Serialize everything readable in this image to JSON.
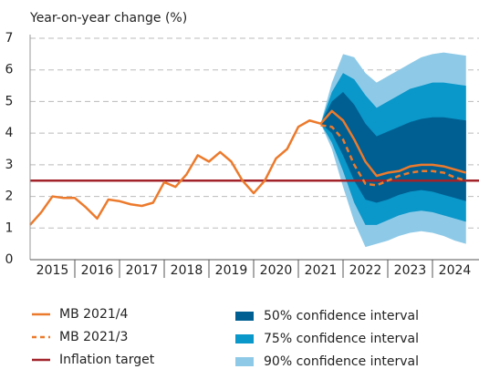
{
  "chart_data": {
    "type": "fan",
    "y_label": "Year-on-year change (%)",
    "x": [
      2015,
      2015.25,
      2015.5,
      2015.75,
      2016,
      2016.25,
      2016.5,
      2016.75,
      2017,
      2017.25,
      2017.5,
      2017.75,
      2018,
      2018.25,
      2018.5,
      2018.75,
      2019,
      2019.25,
      2019.5,
      2019.75,
      2020,
      2020.25,
      2020.5,
      2020.75,
      2021,
      2021.25,
      2021.5,
      2021.75,
      2022,
      2022.25,
      2022.5,
      2022.75,
      2023,
      2023.25,
      2023.5,
      2023.75,
      2024,
      2024.25,
      2024.5,
      2024.75
    ],
    "xlim": [
      2015,
      2025
    ],
    "xticks": [
      {
        "value": 2015.5,
        "label": "2015"
      },
      {
        "value": 2016.5,
        "label": "2016"
      },
      {
        "value": 2017.5,
        "label": "2017"
      },
      {
        "value": 2018.5,
        "label": "2018"
      },
      {
        "value": 2019.5,
        "label": "2019"
      },
      {
        "value": 2020.5,
        "label": "2020"
      },
      {
        "value": 2021.5,
        "label": "2021"
      },
      {
        "value": 2022.5,
        "label": "2022"
      },
      {
        "value": 2023.5,
        "label": "2023"
      },
      {
        "value": 2024.5,
        "label": "2024"
      }
    ],
    "ylim": [
      0,
      7
    ],
    "yticks": [
      0,
      1,
      2,
      3,
      4,
      5,
      6,
      7
    ],
    "grid": true,
    "bands": [
      {
        "name": "90% confidence interval",
        "color": "#8ecae8",
        "upper": [
          null,
          null,
          null,
          null,
          null,
          null,
          null,
          null,
          null,
          null,
          null,
          null,
          null,
          null,
          null,
          null,
          null,
          null,
          null,
          null,
          null,
          null,
          null,
          null,
          null,
          null,
          4.3,
          5.6,
          6.5,
          6.4,
          5.9,
          5.6,
          5.8,
          6.0,
          6.2,
          6.4,
          6.5,
          6.55,
          6.5,
          6.45
        ],
        "lower": [
          null,
          null,
          null,
          null,
          null,
          null,
          null,
          null,
          null,
          null,
          null,
          null,
          null,
          null,
          null,
          null,
          null,
          null,
          null,
          null,
          null,
          null,
          null,
          null,
          null,
          null,
          4.3,
          3.5,
          2.3,
          1.2,
          0.4,
          0.5,
          0.6,
          0.75,
          0.85,
          0.9,
          0.85,
          0.75,
          0.6,
          0.5
        ]
      },
      {
        "name": "75% confidence interval",
        "color": "#0a97c9",
        "upper": [
          null,
          null,
          null,
          null,
          null,
          null,
          null,
          null,
          null,
          null,
          null,
          null,
          null,
          null,
          null,
          null,
          null,
          null,
          null,
          null,
          null,
          null,
          null,
          null,
          null,
          null,
          4.3,
          5.3,
          5.9,
          5.7,
          5.2,
          4.8,
          5.0,
          5.2,
          5.4,
          5.5,
          5.6,
          5.6,
          5.55,
          5.5
        ],
        "lower": [
          null,
          null,
          null,
          null,
          null,
          null,
          null,
          null,
          null,
          null,
          null,
          null,
          null,
          null,
          null,
          null,
          null,
          null,
          null,
          null,
          null,
          null,
          null,
          null,
          null,
          null,
          4.3,
          3.7,
          2.8,
          1.8,
          1.1,
          1.1,
          1.25,
          1.4,
          1.5,
          1.55,
          1.5,
          1.4,
          1.3,
          1.2
        ]
      },
      {
        "name": "50% confidence interval",
        "color": "#005f92",
        "upper": [
          null,
          null,
          null,
          null,
          null,
          null,
          null,
          null,
          null,
          null,
          null,
          null,
          null,
          null,
          null,
          null,
          null,
          null,
          null,
          null,
          null,
          null,
          null,
          null,
          null,
          null,
          4.3,
          5.0,
          5.3,
          4.9,
          4.3,
          3.9,
          4.05,
          4.2,
          4.35,
          4.45,
          4.5,
          4.5,
          4.45,
          4.4
        ],
        "lower": [
          null,
          null,
          null,
          null,
          null,
          null,
          null,
          null,
          null,
          null,
          null,
          null,
          null,
          null,
          null,
          null,
          null,
          null,
          null,
          null,
          null,
          null,
          null,
          null,
          null,
          null,
          4.3,
          4.0,
          3.3,
          2.5,
          1.9,
          1.8,
          1.9,
          2.05,
          2.15,
          2.2,
          2.15,
          2.05,
          1.95,
          1.85
        ]
      }
    ],
    "series": [
      {
        "name": "MB 2021/4",
        "color": "#ec7a2c",
        "dashed": false,
        "values": [
          1.1,
          1.5,
          2.0,
          1.95,
          1.95,
          1.65,
          1.3,
          1.9,
          1.85,
          1.75,
          1.7,
          1.8,
          2.45,
          2.3,
          2.7,
          3.3,
          3.1,
          3.4,
          3.1,
          2.5,
          2.1,
          2.5,
          3.2,
          3.5,
          4.2,
          4.4,
          4.3,
          4.7,
          4.4,
          3.8,
          3.1,
          2.65,
          2.75,
          2.8,
          2.95,
          3.0,
          3.0,
          2.95,
          2.85,
          2.75
        ]
      },
      {
        "name": "MB 2021/3",
        "color": "#ec7a2c",
        "dashed": true,
        "values": [
          null,
          null,
          null,
          null,
          null,
          null,
          null,
          null,
          null,
          null,
          null,
          null,
          null,
          null,
          null,
          null,
          null,
          null,
          null,
          null,
          null,
          null,
          null,
          null,
          null,
          null,
          4.25,
          4.2,
          3.8,
          3.0,
          2.4,
          2.35,
          2.5,
          2.65,
          2.75,
          2.8,
          2.8,
          2.75,
          2.6,
          2.5
        ]
      }
    ],
    "target": {
      "name": "Inflation target",
      "color": "#a3232b",
      "value": 2.5
    }
  }
}
